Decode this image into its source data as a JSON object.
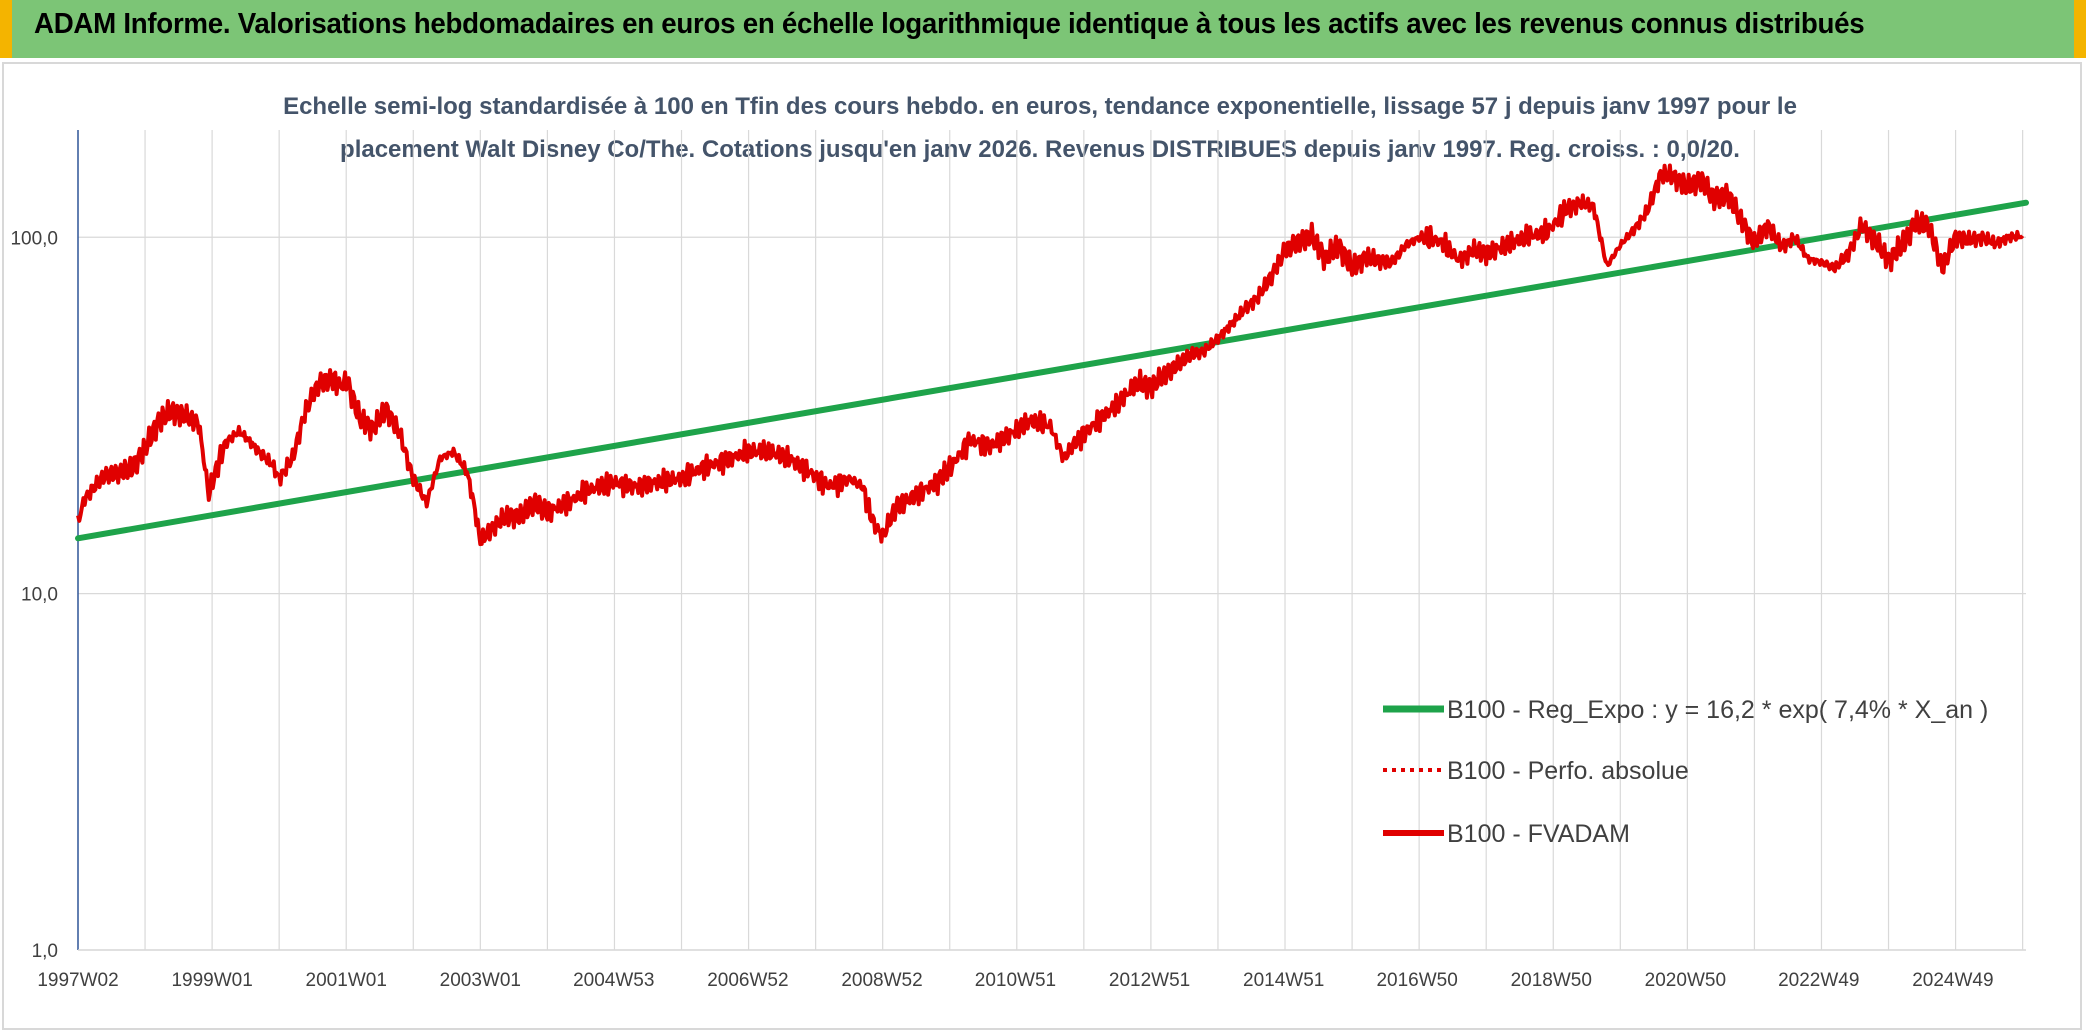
{
  "header": {
    "title": "ADAM Informe. Valorisations hebdomadaires en euros en échelle logarithmique identique à tous les actifs avec les revenus connus distribués"
  },
  "colors": {
    "banner": "#7cc576",
    "trend": "#1ea34a",
    "fvadam": "#e00000",
    "grid": "#d9d9d9",
    "axis": "#2f5597"
  },
  "chart_data": {
    "type": "line",
    "title_lines": [
      "Echelle semi-log standardisée à 100 en Tfin des cours hebdo. en euros, tendance exponentielle, lissage 57 j depuis janv 1997 pour le",
      "placement Walt Disney Co/The. Cotations jusqu'en janv 2026. Revenus DISTRIBUES depuis janv 1997. Reg. croiss. : 0,0/20."
    ],
    "y_scale": "log",
    "ylim": [
      1,
      200
    ],
    "y_ticks": [
      {
        "value": 1,
        "label": "1,0"
      },
      {
        "value": 10,
        "label": "10,0"
      },
      {
        "value": 100,
        "label": "100,0"
      }
    ],
    "xlim": [
      1997.0,
      2026.05
    ],
    "x_ticks": [
      {
        "value": 1997.0,
        "label": "1997W02"
      },
      {
        "value": 1999.0,
        "label": "1999W01"
      },
      {
        "value": 2001.0,
        "label": "2001W01"
      },
      {
        "value": 2003.0,
        "label": "2003W01"
      },
      {
        "value": 2004.99,
        "label": "2004W53"
      },
      {
        "value": 2006.99,
        "label": "2006W52"
      },
      {
        "value": 2008.99,
        "label": "2008W52"
      },
      {
        "value": 2010.98,
        "label": "2010W51"
      },
      {
        "value": 2012.98,
        "label": "2012W51"
      },
      {
        "value": 2014.98,
        "label": "2014W51"
      },
      {
        "value": 2016.97,
        "label": "2016W50"
      },
      {
        "value": 2018.97,
        "label": "2018W50"
      },
      {
        "value": 2020.97,
        "label": "2020W50"
      },
      {
        "value": 2022.96,
        "label": "2022W49"
      },
      {
        "value": 2024.96,
        "label": "2024W49"
      }
    ],
    "legend_position": "bottom-right",
    "series": [
      {
        "name": "B100 - Reg_Expo : y = 16,2 * exp( 7,4% *  X_an )",
        "style": "solid-thick",
        "color": "#1ea34a",
        "x": [
          1997.0,
          2026.05
        ],
        "y": [
          14.3,
          125
        ]
      },
      {
        "name": "B100 - Perfo. absolue",
        "style": "dotted",
        "color": "#e00000",
        "x": [],
        "y": []
      },
      {
        "name": "B100 - FVADAM",
        "style": "solid",
        "color": "#e00000",
        "x": [
          1997.0,
          1997.1,
          1997.2,
          1997.4,
          1997.6,
          1997.8,
          1998.0,
          1998.2,
          1998.4,
          1998.6,
          1998.8,
          1998.95,
          1999.05,
          1999.2,
          1999.4,
          1999.5,
          1999.7,
          1999.9,
          2000.0,
          2000.2,
          2000.4,
          2000.6,
          2000.8,
          2000.95,
          2001.0,
          2001.2,
          2001.4,
          2001.6,
          2001.8,
          2002.0,
          2002.2,
          2002.4,
          2002.6,
          2002.8,
          2002.9,
          2003.0,
          2003.2,
          2003.4,
          2003.6,
          2003.8,
          2004.0,
          2004.3,
          2004.6,
          2005.0,
          2005.3,
          2005.6,
          2006.0,
          2006.3,
          2006.6,
          2007.0,
          2007.3,
          2007.6,
          2007.9,
          2008.2,
          2008.5,
          2008.7,
          2008.85,
          2009.0,
          2009.2,
          2009.5,
          2009.8,
          2010.0,
          2010.3,
          2010.6,
          2010.9,
          2011.2,
          2011.5,
          2011.7,
          2011.9,
          2012.2,
          2012.5,
          2012.8,
          2013.0,
          2013.2,
          2013.4,
          2013.6,
          2013.8,
          2014.0,
          2014.2,
          2014.4,
          2014.6,
          2014.8,
          2015.0,
          2015.2,
          2015.4,
          2015.6,
          2015.8,
          2016.0,
          2016.2,
          2016.4,
          2016.6,
          2016.8,
          2017.0,
          2017.3,
          2017.6,
          2017.8,
          2018.0,
          2018.3,
          2018.6,
          2018.9,
          2019.2,
          2019.4,
          2019.6,
          2019.8,
          2020.0,
          2020.2,
          2020.4,
          2020.6,
          2020.8,
          2021.0,
          2021.2,
          2021.4,
          2021.6,
          2021.8,
          2022.0,
          2022.2,
          2022.4,
          2022.6,
          2022.8,
          2023.0,
          2023.2,
          2023.4,
          2023.6,
          2023.8,
          2024.0,
          2024.2,
          2024.4,
          2024.6,
          2024.8,
          2025.0,
          2025.2,
          2025.4,
          2025.6,
          2025.8,
          2026.0
        ],
        "y": [
          15.9,
          18.5,
          19.5,
          21.5,
          21.8,
          22.5,
          25.5,
          30.5,
          32.5,
          31.5,
          30,
          19,
          22,
          26.5,
          28.5,
          27.5,
          25,
          23,
          21,
          24,
          33,
          39,
          40,
          38,
          40,
          31,
          29,
          33,
          28,
          21,
          18,
          24,
          25,
          22,
          18,
          14,
          15.5,
          16.5,
          16.5,
          18,
          17,
          18,
          19.5,
          20.5,
          20,
          20.5,
          21,
          22.5,
          23.5,
          25,
          25,
          24,
          22,
          20,
          21,
          20,
          16,
          14.5,
          17.5,
          19,
          20.5,
          22.5,
          27,
          26,
          28,
          30.5,
          29.5,
          24,
          27,
          30.5,
          34,
          39,
          38,
          41,
          44,
          47,
          48,
          52,
          57,
          63,
          68,
          78,
          92,
          97,
          101,
          87,
          95,
          82,
          88,
          86,
          85,
          95,
          100,
          98,
          86,
          92,
          90,
          95,
          100,
          103,
          120,
          125,
          122,
          83,
          95,
          105,
          118,
          150,
          148,
          138,
          145,
          128,
          132,
          112,
          96,
          108,
          94,
          100,
          87,
          85,
          82,
          90,
          108,
          98,
          86,
          95,
          110,
          108,
          82,
          100,
          98,
          100,
          96,
          100,
          101
        ]
      }
    ]
  }
}
